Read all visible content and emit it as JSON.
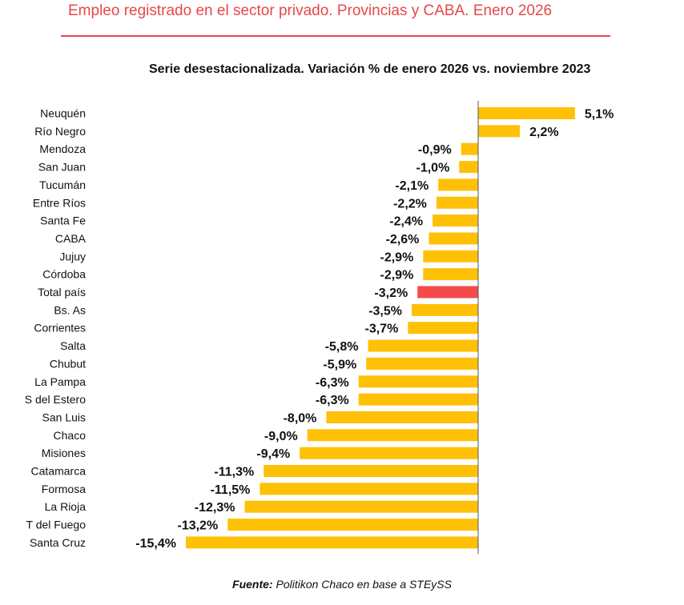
{
  "title": "Empleo registrado en el sector privado. Provincias y CABA. Enero 2026",
  "subtitle": "Serie desestacionalizada. Variación % de enero 2026 vs. noviembre 2023",
  "source": {
    "label": "Fuente:",
    "text": " Politikon Chaco en base a STEySS"
  },
  "colors": {
    "bar": "#ffc107",
    "highlight": "#f44a4a",
    "axis": "#555555",
    "title": "#e8474a"
  },
  "chart_data": {
    "type": "bar",
    "orientation": "horizontal",
    "title": "Empleo registrado en el sector privado. Provincias y CABA. Enero 2026",
    "subtitle": "Serie desestacionalizada. Variación % de enero 2026 vs. noviembre 2023",
    "xlabel": "",
    "ylabel": "",
    "xlim": [
      -16,
      6
    ],
    "grid": false,
    "highlight_category": "Total país",
    "categories": [
      "Neuquén",
      "Río Negro",
      "Mendoza",
      "San Juan",
      "Tucumán",
      "Entre Ríos",
      "Santa Fe",
      "CABA",
      "Jujuy",
      "Córdoba",
      "Total país",
      "Bs. As",
      "Corrientes",
      "Salta",
      "Chubut",
      "La Pampa",
      "S del Estero",
      "San Luis",
      "Chaco",
      "Misiones",
      "Catamarca",
      "Formosa",
      "La Rioja",
      "T del Fuego",
      "Santa Cruz"
    ],
    "values": [
      5.1,
      2.2,
      -0.9,
      -1.0,
      -2.1,
      -2.2,
      -2.4,
      -2.6,
      -2.9,
      -2.9,
      -3.2,
      -3.5,
      -3.7,
      -5.8,
      -5.9,
      -6.3,
      -6.3,
      -8.0,
      -9.0,
      -9.4,
      -11.3,
      -11.5,
      -12.3,
      -13.2,
      -15.4
    ],
    "labels": [
      "5,1%",
      "2,2%",
      "-0,9%",
      "-1,0%",
      "-2,1%",
      "-2,2%",
      "-2,4%",
      "-2,6%",
      "-2,9%",
      "-2,9%",
      "-3,2%",
      "-3,5%",
      "-3,7%",
      "-5,8%",
      "-5,9%",
      "-6,3%",
      "-6,3%",
      "-8,0%",
      "-9,0%",
      "-9,4%",
      "-11,3%",
      "-11,5%",
      "-12,3%",
      "-13,2%",
      "-15,4%"
    ]
  }
}
